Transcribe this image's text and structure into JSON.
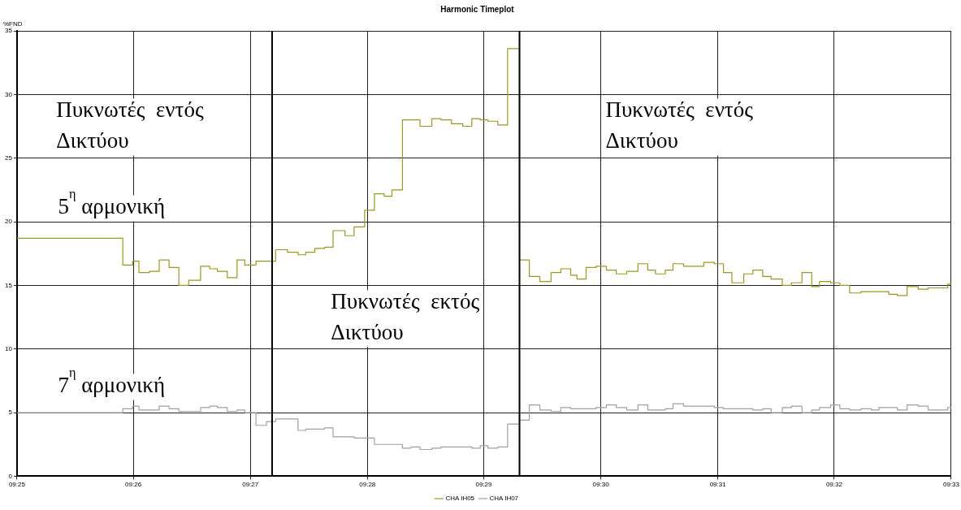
{
  "chart_data": {
    "type": "step",
    "title": "Harmonic Timeplot",
    "ylabel": "%FND",
    "xlim": [
      9.4167,
      9.55
    ],
    "xticks": [
      {
        "value": 9.4167,
        "label": "09:25"
      },
      {
        "value": 9.4333,
        "label": "09:26"
      },
      {
        "value": 9.45,
        "label": "09:27"
      },
      {
        "value": 9.4667,
        "label": "09:28"
      },
      {
        "value": 9.4833,
        "label": "09:29"
      },
      {
        "value": 9.5,
        "label": "09:30"
      },
      {
        "value": 9.5167,
        "label": "09:31"
      },
      {
        "value": 9.5333,
        "label": "09:32"
      },
      {
        "value": 9.55,
        "label": "09:33"
      }
    ],
    "ylim": [
      0,
      35
    ],
    "yticks": [
      0,
      5,
      10,
      15,
      20,
      25,
      30,
      35
    ],
    "grid": true,
    "legend": "bottom",
    "marker": "none",
    "line_style": "solid",
    "x": [
      9.4167,
      9.4318,
      9.4332,
      9.4341,
      9.4356,
      9.437,
      9.4384,
      9.4398,
      9.4412,
      9.4429,
      9.4442,
      9.4453,
      9.4467,
      9.4481,
      9.4492,
      9.4508,
      9.4523,
      9.4536,
      9.4553,
      9.4568,
      9.4579,
      9.4592,
      9.4606,
      9.4618,
      9.4635,
      9.4648,
      9.4663,
      9.4677,
      9.4691,
      9.4702,
      9.4717,
      9.4729,
      9.4742,
      9.4759,
      9.4772,
      9.4787,
      9.4803,
      9.4816,
      9.4828,
      9.4839,
      9.4853,
      9.4867,
      9.4884,
      9.4898,
      9.4913,
      9.4929,
      9.4943,
      9.4957,
      9.4966,
      9.4979,
      9.4993,
      9.5008,
      9.5022,
      9.5037,
      9.5053,
      9.5067,
      9.5078,
      9.5092,
      9.5103,
      9.5118,
      9.5132,
      9.5147,
      9.5162,
      9.5175,
      9.5187,
      9.5204,
      9.5217,
      9.5231,
      9.5243,
      9.5259,
      9.5272,
      9.5287,
      9.5301,
      9.5312,
      9.5328,
      9.5341,
      9.5355,
      9.5371,
      9.5386,
      9.5397,
      9.5411,
      9.5423,
      9.5437,
      9.5453,
      9.5467,
      9.5495,
      9.55
    ],
    "series": [
      {
        "name": "CHA IH05",
        "color": "#999a1c",
        "values": [
          18.7,
          16.6,
          16.9,
          16.0,
          16.1,
          17.0,
          16.4,
          15.0,
          15.4,
          16.5,
          16.3,
          16.1,
          15.6,
          17.0,
          16.6,
          16.9,
          16.9,
          17.8,
          17.6,
          17.4,
          17.6,
          17.9,
          18.0,
          19.3,
          18.9,
          19.6,
          20.9,
          22.2,
          22.0,
          22.5,
          28.0,
          28.0,
          27.5,
          28.1,
          28.0,
          27.7,
          27.5,
          28.1,
          28.0,
          27.9,
          27.6,
          33.6,
          17.0,
          15.7,
          15.3,
          16.0,
          16.3,
          15.8,
          15.5,
          16.4,
          16.5,
          16.2,
          15.9,
          16.1,
          16.7,
          16.2,
          15.9,
          16.2,
          16.7,
          16.5,
          16.5,
          16.8,
          16.7,
          16.0,
          15.2,
          15.9,
          16.2,
          15.7,
          15.5,
          15.0,
          15.2,
          16.0,
          14.9,
          15.3,
          15.2,
          15.0,
          14.4,
          14.5,
          14.5,
          14.5,
          14.3,
          14.2,
          14.9,
          14.7,
          14.8,
          15.1,
          15.1
        ]
      },
      {
        "name": "CHA IH07",
        "color": "#a0a0a0",
        "values": [
          5.0,
          5.3,
          5.5,
          5.2,
          5.2,
          5.5,
          5.3,
          5.1,
          5.1,
          5.4,
          5.5,
          5.4,
          5.1,
          5.2,
          5.0,
          4.0,
          4.3,
          4.5,
          4.5,
          3.6,
          3.7,
          3.7,
          3.8,
          3.1,
          3.1,
          3.0,
          3.0,
          2.5,
          2.5,
          2.5,
          2.2,
          2.3,
          2.1,
          2.2,
          2.3,
          2.3,
          2.3,
          2.2,
          2.4,
          2.2,
          2.3,
          4.1,
          4.4,
          5.6,
          5.2,
          5.1,
          5.4,
          5.3,
          5.3,
          5.3,
          5.4,
          5.6,
          5.4,
          5.2,
          5.6,
          5.2,
          5.2,
          5.3,
          5.7,
          5.5,
          5.5,
          5.5,
          5.4,
          5.3,
          5.3,
          5.3,
          5.2,
          5.3,
          5.0,
          5.4,
          5.5,
          5.0,
          5.2,
          5.4,
          5.6,
          5.3,
          5.2,
          5.3,
          5.2,
          5.4,
          5.4,
          5.2,
          5.6,
          5.5,
          5.2,
          5.4,
          5.4
        ]
      }
    ],
    "ref_lines": [
      {
        "axis": "x",
        "value": 9.4531,
        "color": "#000000"
      },
      {
        "axis": "x",
        "value": 9.4884,
        "color": "#000000"
      }
    ],
    "annotations": [
      "Πυκνωτές  εντός Δικτύου",
      "Πυκνωτές  εντός Δικτύου",
      "Πυκνωτές  εκτός Δικτύου",
      "5$^{η}$ αρμονική",
      "7$^{η}$ αρμονική"
    ]
  }
}
